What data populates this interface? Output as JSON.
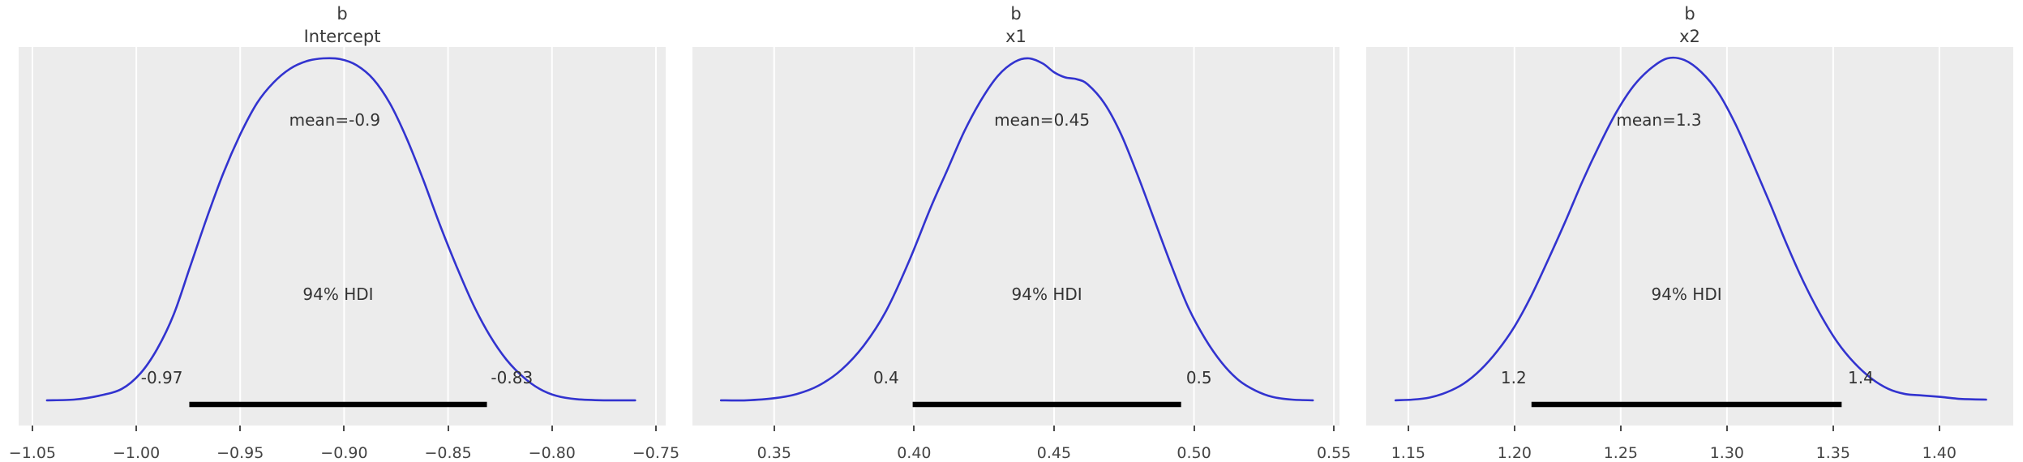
{
  "figure": {
    "colors": {
      "background": "#ffffff",
      "panel_bg": "#ececec",
      "grid": "#ffffff",
      "curve": "#3233cf",
      "hdi_bar": "#000000",
      "title_text": "#3a3a3a",
      "annotation_text": "#333333",
      "tick_text": "#444444"
    }
  },
  "chart_data": [
    {
      "type": "kde",
      "title": "b",
      "subtitle": "Intercept",
      "mean": -0.9,
      "mean_label": "mean=-0.9",
      "mean_x": -0.9045,
      "hdi_label": "94% HDI",
      "hdi": [
        -0.97,
        -0.83
      ],
      "hdi_low_label": "-0.97",
      "hdi_high_label": "-0.83",
      "hdi_x": [
        -0.9745,
        -0.8313
      ],
      "hdi_label_x": [
        -0.9877,
        -0.8193
      ],
      "xlim": [
        -1.0566,
        -0.7453
      ],
      "xticks": [
        -1.05,
        -1.0,
        -0.95,
        -0.9,
        -0.85,
        -0.8,
        -0.75
      ],
      "xtick_labels": [
        "−1.05",
        "−1.00",
        "−0.95",
        "−0.90",
        "−0.85",
        "−0.80",
        "−0.75"
      ],
      "curve": [
        [
          -1.043,
          0.012
        ],
        [
          -1.03,
          0.014
        ],
        [
          -1.018,
          0.025
        ],
        [
          -1.007,
          0.045
        ],
        [
          -0.998,
          0.09
        ],
        [
          -0.99,
          0.16
        ],
        [
          -0.982,
          0.26
        ],
        [
          -0.974,
          0.4
        ],
        [
          -0.966,
          0.54
        ],
        [
          -0.958,
          0.67
        ],
        [
          -0.95,
          0.78
        ],
        [
          -0.942,
          0.87
        ],
        [
          -0.934,
          0.93
        ],
        [
          -0.926,
          0.97
        ],
        [
          -0.918,
          0.992
        ],
        [
          -0.91,
          1.0
        ],
        [
          -0.902,
          0.998
        ],
        [
          -0.894,
          0.98
        ],
        [
          -0.886,
          0.94
        ],
        [
          -0.878,
          0.87
        ],
        [
          -0.87,
          0.77
        ],
        [
          -0.862,
          0.65
        ],
        [
          -0.854,
          0.52
        ],
        [
          -0.846,
          0.4
        ],
        [
          -0.838,
          0.29
        ],
        [
          -0.83,
          0.2
        ],
        [
          -0.822,
          0.13
        ],
        [
          -0.814,
          0.08
        ],
        [
          -0.806,
          0.045
        ],
        [
          -0.798,
          0.025
        ],
        [
          -0.788,
          0.015
        ],
        [
          -0.775,
          0.012
        ],
        [
          -0.76,
          0.012
        ]
      ]
    },
    {
      "type": "kde",
      "title": "b",
      "subtitle": "x1",
      "mean": 0.45,
      "mean_label": "mean=0.45",
      "mean_x": 0.4457,
      "hdi_label": "94% HDI",
      "hdi": [
        0.4,
        0.5
      ],
      "hdi_low_label": "0.4",
      "hdi_high_label": "0.5",
      "hdi_x": [
        0.3995,
        0.4954
      ],
      "hdi_label_x": [
        0.39,
        0.5018
      ],
      "xlim": [
        0.3208,
        0.552
      ],
      "xticks": [
        0.35,
        0.4,
        0.45,
        0.5,
        0.55
      ],
      "xtick_labels": [
        "0.35",
        "0.40",
        "0.45",
        "0.50",
        "0.55"
      ],
      "curve": [
        [
          0.331,
          0.012
        ],
        [
          0.34,
          0.012
        ],
        [
          0.35,
          0.018
        ],
        [
          0.358,
          0.03
        ],
        [
          0.366,
          0.055
        ],
        [
          0.374,
          0.1
        ],
        [
          0.382,
          0.17
        ],
        [
          0.39,
          0.27
        ],
        [
          0.398,
          0.41
        ],
        [
          0.406,
          0.57
        ],
        [
          0.412,
          0.68
        ],
        [
          0.418,
          0.79
        ],
        [
          0.424,
          0.88
        ],
        [
          0.43,
          0.95
        ],
        [
          0.436,
          0.99
        ],
        [
          0.441,
          1.0
        ],
        [
          0.446,
          0.985
        ],
        [
          0.45,
          0.96
        ],
        [
          0.454,
          0.945
        ],
        [
          0.458,
          0.94
        ],
        [
          0.462,
          0.925
        ],
        [
          0.468,
          0.87
        ],
        [
          0.474,
          0.78
        ],
        [
          0.48,
          0.66
        ],
        [
          0.486,
          0.53
        ],
        [
          0.492,
          0.4
        ],
        [
          0.498,
          0.28
        ],
        [
          0.504,
          0.19
        ],
        [
          0.51,
          0.12
        ],
        [
          0.516,
          0.07
        ],
        [
          0.522,
          0.04
        ],
        [
          0.528,
          0.022
        ],
        [
          0.535,
          0.014
        ],
        [
          0.5425,
          0.012
        ]
      ]
    },
    {
      "type": "kde",
      "title": "b",
      "subtitle": "x2",
      "mean": 1.3,
      "mean_label": "mean=1.3",
      "mean_x": 1.268,
      "hdi_label": "94% HDI",
      "hdi": [
        1.2,
        1.4
      ],
      "hdi_low_label": "1.2",
      "hdi_high_label": "1.4",
      "hdi_x": [
        1.208,
        1.354
      ],
      "hdi_label_x": [
        1.1996,
        1.363
      ],
      "xlim": [
        1.1302,
        1.4348
      ],
      "xticks": [
        1.15,
        1.2,
        1.25,
        1.3,
        1.35,
        1.4
      ],
      "xtick_labels": [
        "1.15",
        "1.20",
        "1.25",
        "1.30",
        "1.35",
        "1.40"
      ],
      "curve": [
        [
          1.144,
          0.012
        ],
        [
          1.152,
          0.014
        ],
        [
          1.16,
          0.02
        ],
        [
          1.168,
          0.035
        ],
        [
          1.176,
          0.06
        ],
        [
          1.184,
          0.1
        ],
        [
          1.192,
          0.155
        ],
        [
          1.2,
          0.225
        ],
        [
          1.208,
          0.315
        ],
        [
          1.216,
          0.42
        ],
        [
          1.224,
          0.53
        ],
        [
          1.232,
          0.645
        ],
        [
          1.24,
          0.75
        ],
        [
          1.248,
          0.845
        ],
        [
          1.256,
          0.92
        ],
        [
          1.264,
          0.97
        ],
        [
          1.272,
          1.0
        ],
        [
          1.28,
          0.995
        ],
        [
          1.288,
          0.96
        ],
        [
          1.296,
          0.9
        ],
        [
          1.304,
          0.81
        ],
        [
          1.312,
          0.7
        ],
        [
          1.32,
          0.585
        ],
        [
          1.328,
          0.465
        ],
        [
          1.336,
          0.355
        ],
        [
          1.344,
          0.26
        ],
        [
          1.352,
          0.18
        ],
        [
          1.36,
          0.12
        ],
        [
          1.368,
          0.075
        ],
        [
          1.376,
          0.045
        ],
        [
          1.384,
          0.03
        ],
        [
          1.392,
          0.026
        ],
        [
          1.4,
          0.022
        ],
        [
          1.41,
          0.016
        ],
        [
          1.422,
          0.014
        ]
      ]
    }
  ]
}
